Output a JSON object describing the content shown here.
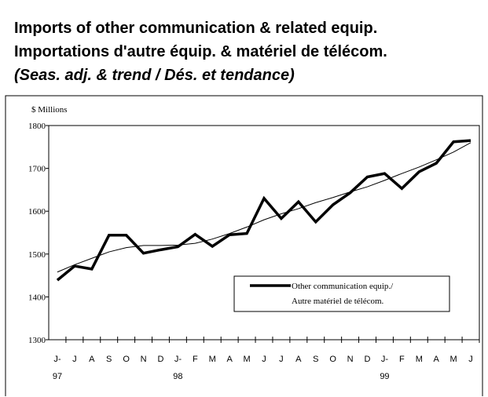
{
  "chart_data": {
    "type": "line",
    "title": "Imports of other communication & related equip.",
    "subtitle": "Importations d'autre équip. & matériel de télécom.",
    "subtitle2": "(Seas. adj. & trend / Dés. et tendance)",
    "y_axis_label": "$ Millions",
    "categories": [
      "J-",
      "J",
      "A",
      "S",
      "O",
      "N",
      "D",
      "J-",
      "F",
      "M",
      "A",
      "M",
      "J",
      "J",
      "A",
      "S",
      "O",
      "N",
      "D",
      "J-",
      "F",
      "M",
      "A",
      "M",
      "J"
    ],
    "category_years": [
      "97",
      null,
      null,
      null,
      null,
      null,
      null,
      "98",
      null,
      null,
      null,
      null,
      null,
      null,
      null,
      null,
      null,
      null,
      null,
      "99",
      null,
      null,
      null,
      null,
      null
    ],
    "series": [
      {
        "name": [
          "Other communication equip./",
          "Autre matériel de télécom."
        ],
        "color": "#000000",
        "values": [
          1439,
          1472,
          1465,
          1544,
          1544,
          1502,
          1510,
          1517,
          1546,
          1518,
          1545,
          1548,
          1630,
          1583,
          1622,
          1575,
          1615,
          1643,
          1680,
          1688,
          1653,
          1692,
          1712,
          1762,
          1765
        ]
      },
      {
        "color": "#000000",
        "values": [
          1458,
          1475,
          1490,
          1505,
          1515,
          1520,
          1520,
          1521,
          1525,
          1535,
          1548,
          1563,
          1580,
          1594,
          1606,
          1620,
          1632,
          1645,
          1657,
          1672,
          1688,
          1703,
          1720,
          1738,
          1760
        ]
      }
    ],
    "ylim": [
      1300,
      1800
    ],
    "yticks": [
      1300,
      1400,
      1500,
      1600,
      1700,
      1800
    ]
  }
}
